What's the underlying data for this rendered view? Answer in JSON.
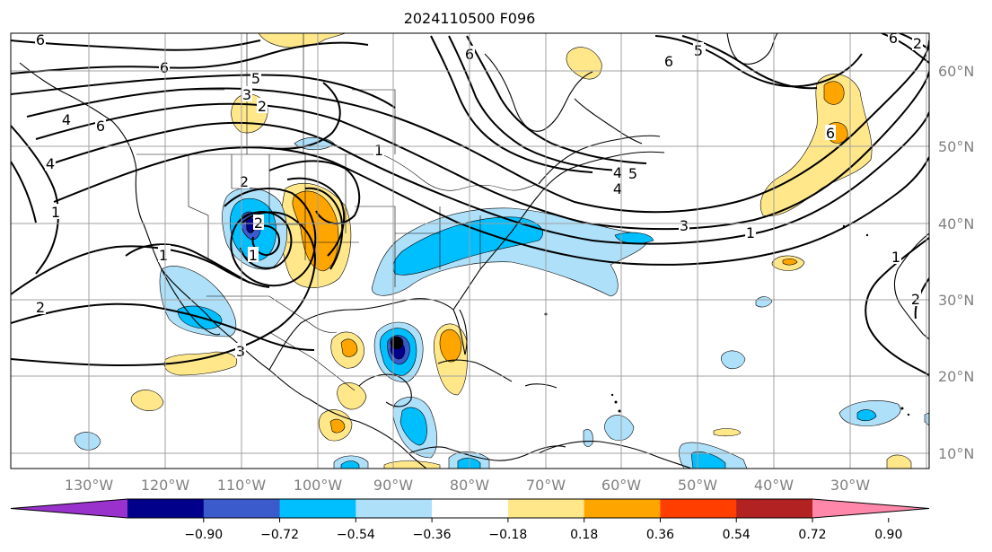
{
  "title": "2024110500 F096",
  "lon_labels": [
    "130°W",
    "120°W",
    "110°W",
    "100°W",
    "90°W",
    "80°W",
    "70°W",
    "60°W",
    "50°W",
    "40°W",
    "30°W"
  ],
  "lat_labels": [
    "60°N",
    "50°N",
    "40°N",
    "30°N",
    "20°N",
    "10°N"
  ],
  "colorbar": {
    "ticks": [
      "−0.90",
      "−0.72",
      "−0.54",
      "−0.36",
      "−0.18",
      "0.18",
      "0.36",
      "0.54",
      "0.72",
      "0.90"
    ],
    "colors": [
      "#9932cc",
      "#00008b",
      "#3b5bcc",
      "#00bfff",
      "#aee0fa",
      "#ffffff",
      "#ffe78a",
      "#ffa500",
      "#ff3e00",
      "#b22222",
      "#ff88aa"
    ]
  },
  "contour_labels": [
    "6",
    "6",
    "5",
    "3",
    "2",
    "2",
    "1",
    "1",
    "4",
    "1",
    "2",
    "3",
    "1",
    "5",
    "6",
    "6",
    "6",
    "4",
    "2",
    "5",
    "6",
    "3",
    "1",
    "1",
    "2",
    "1",
    "4",
    "6",
    "5",
    "4",
    "2"
  ],
  "colors": {
    "gridline": "#a0a0a0",
    "coast": "#000000",
    "contour": "#000000"
  }
}
